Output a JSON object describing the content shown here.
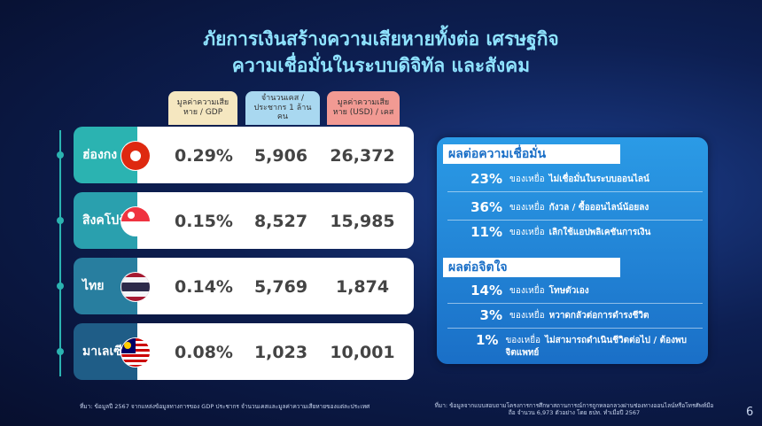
{
  "header": {
    "title_lines": [
      "ภัยการเงินสร้างความเสียหายทั้งต่อ เศรษฐกิจ",
      "ความเชื่อมั่นในระบบดิจิทัล และสังคม"
    ]
  },
  "table": {
    "columns": [
      "มูลค่าความเสียหาย / GDP",
      "จำนวนเคส / ประชากร 1 ล้านคน",
      "มูลค่าความเสียหาย (USD) / เคส"
    ],
    "rows": [
      [
        "ฮ่องกง",
        "0.29%",
        "5,906",
        "26,372"
      ],
      [
        "สิงคโปร์",
        "0.15%",
        "8,527",
        "15,985"
      ],
      [
        "ไทย",
        "0.14%",
        "5,769",
        "1,874"
      ],
      [
        "มาเลเซีย",
        "0.08%",
        "1,023",
        "10,001"
      ]
    ]
  },
  "panels": [
    {
      "title": "ผลต่อความเชื่อมั่น",
      "items": [
        {
          "percent": "23%",
          "label": "ของเหยื่อ",
          "text": "ไม่เชื่อมั่นในระบบออนไลน์"
        },
        {
          "percent": "36%",
          "label": "ของเหยื่อ",
          "text": "กังวล / ซื้อออนไลน์น้อยลง"
        },
        {
          "percent": "11%",
          "label": "ของเหยื่อ",
          "text": "เลิกใช้แอปพลิเคชันการเงิน"
        }
      ]
    },
    {
      "title": "ผลต่อจิตใจ",
      "items": [
        {
          "percent": "14%",
          "label": "ของเหยื่อ",
          "text": "โทษตัวเอง"
        },
        {
          "percent": "3%",
          "label": "ของเหยื่อ",
          "text": "หวาดกลัวต่อการดำรงชีวิต"
        },
        {
          "percent": "1%",
          "label": "ของเหยื่อ",
          "text": "ไม่สามารถดำเนินชีวิตต่อไป / ต้องพบจิตแพทย์"
        }
      ]
    }
  ],
  "footer": {
    "source_left": "ที่มา: ข้อมูลปี 2567 จากแหล่งข้อมูลทางการของ GDP ประชากร จำนวนเคสและมูลค่าความเสียหายของแต่ละประเทศ",
    "source_right": "ที่มา: ข้อมูลจากแบบสอบถามโครงการการศึกษาสถานการณ์การถูกหลอกลวงผ่านช่องทางออนไลน์หรือโทรศัพท์มือถือ จำนวน 6,973 ตัวอย่าง โดย ธปท. ทำเมื่อปี 2567",
    "page_number": "6"
  }
}
